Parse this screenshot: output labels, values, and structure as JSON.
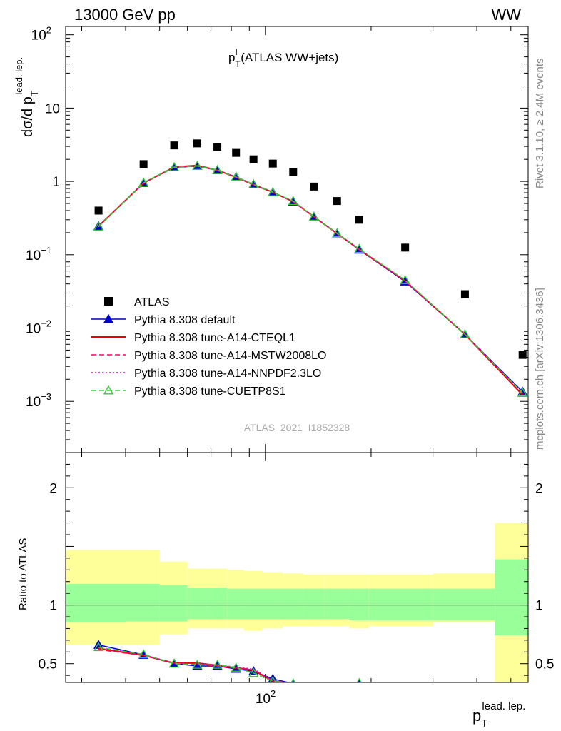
{
  "header": {
    "left": "13000 GeV pp",
    "right": "WW"
  },
  "side_labels": {
    "rivet": "Rivet 3.1.10, ≥ 2.4M events",
    "mcplots": "mcplots.cern.ch [arXiv:1306.3436]"
  },
  "colors": {
    "data": "#000000",
    "default": "#0000cc",
    "cteql1": "#ee0000",
    "mstw": "#ff0066",
    "nnpdf": "#ee00cc",
    "cuetp8s1": "#33cc33",
    "band_inner": "#99ff99",
    "band_outer": "#ffff99"
  },
  "chart_data": [
    {
      "type": "scatter",
      "title": "p_T^l (ATLAS WW+jets)",
      "title_parts": {
        "main": "p",
        "sup": "l",
        "sub": "T",
        "rest": " (ATLAS WW+jets)"
      },
      "ylabel": "dσ/d p_T^{lead. lep.}",
      "ylabel_parts": {
        "main": "dσ/d p",
        "sub": "T",
        "sup": "lead. lep."
      },
      "watermark": "ATLAS_2021_I1852328",
      "xscale": "log",
      "yscale": "log",
      "xlim": [
        27,
        560
      ],
      "ylim": [
        0.0002,
        130
      ],
      "y_ticks": [
        {
          "v": 0.001,
          "main": "10",
          "exp": "−3"
        },
        {
          "v": 0.01,
          "main": "10",
          "exp": "−2"
        },
        {
          "v": 0.1,
          "main": "10",
          "exp": "−1"
        },
        {
          "v": 1,
          "main": "1",
          "exp": ""
        },
        {
          "v": 10,
          "main": "10",
          "exp": ""
        },
        {
          "v": 100,
          "main": "10",
          "exp": "2"
        }
      ],
      "legend_position": "lower-left",
      "x": [
        33.5,
        45,
        55,
        64,
        73,
        82.5,
        92.5,
        105,
        120,
        137.5,
        160,
        185,
        250,
        370,
        540
      ],
      "series": [
        {
          "name": "ATLAS",
          "key": "data",
          "style": "square",
          "values": [
            0.4,
            1.72,
            3.1,
            3.3,
            2.95,
            2.45,
            2.0,
            1.75,
            1.35,
            0.85,
            0.54,
            0.3,
            0.125,
            0.029,
            0.0043
          ]
        },
        {
          "name": "Pythia 8.308 default",
          "key": "default",
          "style": "solid",
          "marker": "triangle-filled",
          "values": [
            0.245,
            0.95,
            1.55,
            1.62,
            1.42,
            1.15,
            0.91,
            0.71,
            0.53,
            0.33,
            0.195,
            0.117,
            0.043,
            0.0082,
            0.00135
          ]
        },
        {
          "name": "Pythia 8.308 tune-A14-CTEQL1",
          "key": "cteql1",
          "style": "solid",
          "values": [
            0.245,
            0.95,
            1.57,
            1.65,
            1.42,
            1.14,
            0.9,
            0.71,
            0.53,
            0.33,
            0.195,
            0.118,
            0.044,
            0.0082,
            0.00122
          ]
        },
        {
          "name": "Pythia 8.308 tune-A14-MSTW2008LO",
          "key": "mstw",
          "style": "dashed",
          "values": [
            0.242,
            0.94,
            1.56,
            1.63,
            1.41,
            1.14,
            0.9,
            0.71,
            0.53,
            0.33,
            0.194,
            0.118,
            0.044,
            0.0082,
            0.00126
          ]
        },
        {
          "name": "Pythia 8.308 tune-A14-NNPDF2.3LO",
          "key": "nnpdf",
          "style": "dotted",
          "values": [
            0.244,
            0.95,
            1.56,
            1.64,
            1.42,
            1.15,
            0.91,
            0.72,
            0.53,
            0.33,
            0.196,
            0.118,
            0.044,
            0.0083,
            0.0013
          ]
        },
        {
          "name": "Pythia 8.308 tune-CUETP8S1",
          "key": "cuetp8s1",
          "style": "dashed",
          "marker": "triangle-open",
          "values": [
            0.24,
            0.96,
            1.56,
            1.62,
            1.43,
            1.15,
            0.91,
            0.71,
            0.54,
            0.33,
            0.196,
            0.12,
            0.045,
            0.0082,
            0.0013
          ]
        }
      ]
    },
    {
      "type": "line",
      "ylabel": "Ratio to ATLAS",
      "xlabel": "p_T^{lead. lep.}",
      "xlabel_parts": {
        "main": "p",
        "sub": "T",
        "sup": "lead. lep."
      },
      "xscale": "log",
      "xlim": [
        27,
        560
      ],
      "ylim": [
        0.34,
        2.3
      ],
      "x_tick_label": {
        "v": 100,
        "main": "10",
        "exp": "2"
      },
      "y_ticks": [
        {
          "v": 0.5,
          "label": "0.5"
        },
        {
          "v": 1,
          "label": "1"
        },
        {
          "v": 2,
          "label": "2"
        }
      ],
      "bands": {
        "edges": [
          27,
          40,
          50,
          60,
          68,
          78,
          87,
          98,
          112,
          128,
          147,
          173,
          197,
          300,
          450,
          560
        ],
        "inner": [
          [
            0.85,
            1.18
          ],
          [
            0.86,
            1.18
          ],
          [
            0.86,
            1.17
          ],
          [
            0.88,
            1.15
          ],
          [
            0.88,
            1.15
          ],
          [
            0.88,
            1.14
          ],
          [
            0.88,
            1.14
          ],
          [
            0.88,
            1.14
          ],
          [
            0.88,
            1.14
          ],
          [
            0.88,
            1.14
          ],
          [
            0.88,
            1.14
          ],
          [
            0.87,
            1.14
          ],
          [
            0.87,
            1.14
          ],
          [
            0.87,
            1.14
          ],
          [
            0.74,
            1.39
          ]
        ],
        "outer": [
          [
            0.66,
            1.47
          ],
          [
            0.66,
            1.47
          ],
          [
            0.75,
            1.37
          ],
          [
            0.8,
            1.31
          ],
          [
            0.8,
            1.31
          ],
          [
            0.8,
            1.3
          ],
          [
            0.78,
            1.29
          ],
          [
            0.8,
            1.28
          ],
          [
            0.82,
            1.27
          ],
          [
            0.82,
            1.26
          ],
          [
            0.82,
            1.26
          ],
          [
            0.8,
            1.26
          ],
          [
            0.82,
            1.26
          ],
          [
            0.85,
            1.27
          ],
          [
            0.34,
            1.7
          ]
        ]
      },
      "x": [
        33.5,
        45,
        55,
        64,
        73,
        82.5,
        92.5,
        105,
        120,
        185
      ],
      "series": [
        {
          "name": "Pythia 8.308 default",
          "key": "default",
          "style": "solid",
          "marker": "triangle-filled",
          "values": [
            0.66,
            0.575,
            0.5,
            0.48,
            0.48,
            0.455,
            0.435,
            0.37,
            0.33,
            0.32
          ]
        },
        {
          "name": "Pythia 8.308 tune-A14-CTEQL1",
          "key": "cteql1",
          "style": "solid",
          "values": [
            0.63,
            0.57,
            0.505,
            0.505,
            0.485,
            0.465,
            0.445,
            0.35,
            0.33,
            0.32
          ]
        },
        {
          "name": "Pythia 8.308 tune-A14-MSTW2008LO",
          "key": "mstw",
          "style": "dashed",
          "values": [
            0.62,
            0.57,
            0.5,
            0.495,
            0.48,
            0.46,
            0.445,
            0.35,
            0.33,
            0.32
          ]
        },
        {
          "name": "Pythia 8.308 tune-A14-NNPDF2.3LO",
          "key": "nnpdf",
          "style": "dotted",
          "values": [
            0.64,
            0.575,
            0.505,
            0.5,
            0.49,
            0.47,
            0.455,
            0.355,
            0.33,
            0.32
          ]
        },
        {
          "name": "Pythia 8.308 tune-CUETP8S1",
          "key": "cuetp8s1",
          "style": "dashed",
          "marker": "triangle-open",
          "values": [
            0.64,
            0.58,
            0.5,
            0.49,
            0.49,
            0.465,
            0.42,
            0.35,
            0.33,
            0.335
          ]
        }
      ]
    }
  ]
}
